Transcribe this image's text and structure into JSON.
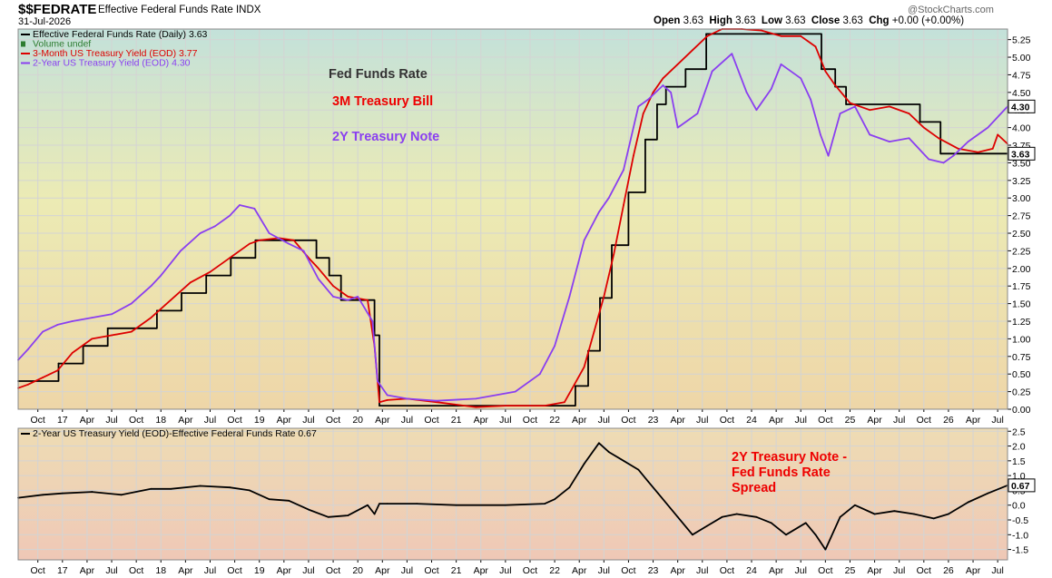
{
  "header": {
    "symbol": "$$FEDRATE",
    "name": "Effective Federal Funds Rate",
    "exchange": "INDX",
    "date": "31-Jul-2026",
    "brand": "@StockCharts.com",
    "open_label": "Open",
    "open": "3.63",
    "high_label": "High",
    "high": "3.63",
    "low_label": "Low",
    "low": "3.63",
    "close_label": "Close",
    "close": "3.63",
    "chg_label": "Chg",
    "chg": "+0.00 (+0.00%)"
  },
  "colors": {
    "fed_funds": "#000000",
    "treasury_3m": "#dd0000",
    "treasury_2y": "#8a3ff0",
    "volume": "#2e7d32",
    "panel_top": "#c3e1da",
    "panel_mid": "#ecebb4",
    "panel_bottom": "#eed6a8",
    "lower_top": "#eedcb4",
    "lower_bottom": "#efc8b6"
  },
  "chart_data": [
    {
      "type": "line",
      "panel": "main",
      "y_axis_side": "right",
      "ylim": [
        0,
        5.4
      ],
      "y_ticks": [
        "0.00",
        "0.25",
        "0.50",
        "0.75",
        "1.00",
        "1.25",
        "1.50",
        "1.75",
        "2.00",
        "2.25",
        "2.50",
        "2.75",
        "3.00",
        "3.25",
        "3.50",
        "3.75",
        "4.00",
        "4.25",
        "4.50",
        "4.75",
        "5.00",
        "5.25"
      ],
      "x_ticks": [
        "Oct",
        "17",
        "Apr",
        "Jul",
        "Oct",
        "18",
        "Apr",
        "Jul",
        "Oct",
        "19",
        "Apr",
        "Jul",
        "Oct",
        "20",
        "Apr",
        "Jul",
        "Oct",
        "21",
        "Apr",
        "Jul",
        "Oct",
        "22",
        "Apr",
        "Jul",
        "Oct",
        "23",
        "Apr",
        "Jul",
        "Oct",
        "24",
        "Apr",
        "Jul",
        "Oct",
        "25",
        "Apr",
        "Jul",
        "Oct",
        "26",
        "Apr",
        "Jul"
      ],
      "x_range": [
        2016.55,
        2026.6
      ],
      "legend": [
        {
          "text": "Effective Federal Funds Rate (Daily) 3.63",
          "color": "#000000"
        },
        {
          "text": "Volume undef",
          "color": "#2e7d32"
        },
        {
          "text": "3-Month US Treasury Yield (EOD) 3.77",
          "color": "#dd0000"
        },
        {
          "text": "2-Year US Treasury Yield (EOD) 4.30",
          "color": "#8a3ff0"
        }
      ],
      "annotations": [
        {
          "text": "Fed Funds Rate",
          "color": "#333333"
        },
        {
          "text": "3M Treasury Bill",
          "color": "#ee0000"
        },
        {
          "text": "2Y Treasury Note",
          "color": "#8a3ff0"
        }
      ],
      "last_value_labels": [
        {
          "text": "4.30",
          "value": 4.3
        },
        {
          "text": "3.63",
          "value": 3.63
        }
      ],
      "series": [
        {
          "name": "Effective Federal Funds Rate (Daily)",
          "step": true,
          "x": [
            2016.55,
            2016.96,
            2017.21,
            2017.46,
            2017.96,
            2018.21,
            2018.46,
            2018.71,
            2018.96,
            2019.58,
            2019.71,
            2019.83,
            2020.17,
            2020.22,
            2022.21,
            2022.34,
            2022.46,
            2022.58,
            2022.75,
            2022.92,
            2023.04,
            2023.13,
            2023.33,
            2023.54,
            2024.71,
            2024.85,
            2024.96,
            2025.71,
            2025.92,
            2026.6
          ],
          "y": [
            0.4,
            0.65,
            0.9,
            1.15,
            1.4,
            1.65,
            1.9,
            2.15,
            2.4,
            2.15,
            1.9,
            1.55,
            1.05,
            0.05,
            0.33,
            0.83,
            1.58,
            2.33,
            3.08,
            3.83,
            4.33,
            4.58,
            4.83,
            5.33,
            4.83,
            4.58,
            4.33,
            4.08,
            3.63,
            3.63
          ]
        },
        {
          "name": "3-Month US Treasury Yield (EOD)",
          "x": [
            2016.55,
            2016.65,
            2016.8,
            2016.95,
            2017.1,
            2017.3,
            2017.5,
            2017.7,
            2017.9,
            2018.1,
            2018.3,
            2018.5,
            2018.7,
            2018.9,
            2019.0,
            2019.2,
            2019.35,
            2019.5,
            2019.6,
            2019.75,
            2019.9,
            2020.1,
            2020.17,
            2020.22,
            2020.3,
            2020.5,
            2020.8,
            2021.2,
            2021.5,
            2021.9,
            2022.1,
            2022.2,
            2022.3,
            2022.4,
            2022.5,
            2022.6,
            2022.7,
            2022.8,
            2022.9,
            2023.0,
            2023.1,
            2023.25,
            2023.4,
            2023.55,
            2023.7,
            2023.9,
            2024.1,
            2024.3,
            2024.5,
            2024.65,
            2024.75,
            2024.85,
            2025.0,
            2025.2,
            2025.4,
            2025.6,
            2025.75,
            2025.9,
            2026.1,
            2026.3,
            2026.45,
            2026.5,
            2026.6
          ],
          "y": [
            0.3,
            0.35,
            0.45,
            0.55,
            0.8,
            1.0,
            1.05,
            1.1,
            1.3,
            1.55,
            1.8,
            1.95,
            2.15,
            2.35,
            2.4,
            2.43,
            2.4,
            2.15,
            2.0,
            1.75,
            1.6,
            1.55,
            0.9,
            0.1,
            0.13,
            0.15,
            0.1,
            0.03,
            0.05,
            0.05,
            0.1,
            0.35,
            0.6,
            1.1,
            1.6,
            2.2,
            2.9,
            3.6,
            4.2,
            4.5,
            4.7,
            4.9,
            5.1,
            5.3,
            5.4,
            5.4,
            5.38,
            5.3,
            5.3,
            5.15,
            4.8,
            4.6,
            4.35,
            4.25,
            4.3,
            4.2,
            4.0,
            3.85,
            3.7,
            3.65,
            3.7,
            3.9,
            3.77
          ]
        },
        {
          "name": "2-Year US Treasury Yield (EOD)",
          "x": [
            2016.55,
            2016.65,
            2016.8,
            2016.95,
            2017.1,
            2017.3,
            2017.5,
            2017.7,
            2017.9,
            2018.0,
            2018.2,
            2018.4,
            2018.55,
            2018.7,
            2018.8,
            2018.95,
            2019.1,
            2019.3,
            2019.45,
            2019.6,
            2019.75,
            2019.9,
            2020.0,
            2020.15,
            2020.2,
            2020.3,
            2020.5,
            2020.8,
            2021.2,
            2021.6,
            2021.85,
            2022.0,
            2022.15,
            2022.3,
            2022.45,
            2022.55,
            2022.7,
            2022.85,
            2022.95,
            2023.1,
            2023.18,
            2023.25,
            2023.45,
            2023.6,
            2023.8,
            2023.95,
            2024.05,
            2024.2,
            2024.3,
            2024.5,
            2024.6,
            2024.7,
            2024.78,
            2024.9,
            2025.05,
            2025.2,
            2025.4,
            2025.6,
            2025.8,
            2025.95,
            2026.05,
            2026.2,
            2026.4,
            2026.6
          ],
          "y": [
            0.7,
            0.85,
            1.1,
            1.2,
            1.25,
            1.3,
            1.35,
            1.5,
            1.75,
            1.9,
            2.25,
            2.5,
            2.6,
            2.75,
            2.9,
            2.85,
            2.5,
            2.35,
            2.25,
            1.85,
            1.6,
            1.55,
            1.6,
            1.25,
            0.4,
            0.2,
            0.15,
            0.12,
            0.15,
            0.25,
            0.5,
            0.9,
            1.6,
            2.4,
            2.8,
            3.0,
            3.4,
            4.3,
            4.4,
            4.6,
            4.5,
            4.0,
            4.2,
            4.8,
            5.05,
            4.5,
            4.25,
            4.55,
            4.9,
            4.7,
            4.4,
            3.9,
            3.6,
            4.2,
            4.3,
            3.9,
            3.8,
            3.85,
            3.55,
            3.5,
            3.6,
            3.8,
            4.0,
            4.3
          ]
        }
      ]
    },
    {
      "type": "line",
      "panel": "lower",
      "ylim": [
        -1.85,
        2.6
      ],
      "y_ticks": [
        "-1.5",
        "-1.0",
        "-0.5",
        "0.0",
        "0.5",
        "1.0",
        "1.5",
        "2.0",
        "2.5"
      ],
      "x_ticks": [
        "Oct",
        "17",
        "Apr",
        "Jul",
        "Oct",
        "18",
        "Apr",
        "Jul",
        "Oct",
        "19",
        "Apr",
        "Jul",
        "Oct",
        "20",
        "Apr",
        "Jul",
        "Oct",
        "21",
        "Apr",
        "Jul",
        "Oct",
        "22",
        "Apr",
        "Jul",
        "Oct",
        "23",
        "Apr",
        "Jul",
        "Oct",
        "24",
        "Apr",
        "Jul",
        "Oct",
        "25",
        "Apr",
        "Jul",
        "Oct",
        "26",
        "Apr",
        "Jul"
      ],
      "x_range": [
        2016.55,
        2026.6
      ],
      "legend": [
        {
          "text": "2-Year US Treasury Yield (EOD)-Effective Federal Funds Rate 0.67",
          "color": "#000000"
        }
      ],
      "annotations": [
        {
          "text": "2Y Treasury Note -",
          "color": "#ee0000"
        },
        {
          "text": "Fed Funds Rate",
          "color": "#ee0000"
        },
        {
          "text": "Spread",
          "color": "#ee0000"
        }
      ],
      "last_value_labels": [
        {
          "text": "0.67",
          "value": 0.67
        }
      ],
      "series": [
        {
          "name": "2-Year US Treasury Yield (EOD)-Effective Federal Funds Rate",
          "x": [
            2016.55,
            2016.8,
            2017.0,
            2017.3,
            2017.6,
            2017.9,
            2018.1,
            2018.4,
            2018.7,
            2018.9,
            2019.1,
            2019.3,
            2019.5,
            2019.7,
            2019.9,
            2020.1,
            2020.17,
            2020.22,
            2020.3,
            2020.6,
            2021.0,
            2021.5,
            2021.9,
            2022.0,
            2022.15,
            2022.3,
            2022.45,
            2022.55,
            2022.7,
            2022.85,
            2022.95,
            2023.05,
            2023.25,
            2023.4,
            2023.55,
            2023.7,
            2023.85,
            2024.05,
            2024.2,
            2024.35,
            2024.55,
            2024.65,
            2024.75,
            2024.9,
            2025.05,
            2025.25,
            2025.45,
            2025.65,
            2025.85,
            2026.0,
            2026.2,
            2026.4,
            2026.6
          ],
          "y": [
            0.25,
            0.35,
            0.4,
            0.45,
            0.35,
            0.55,
            0.55,
            0.65,
            0.6,
            0.5,
            0.2,
            0.15,
            -0.15,
            -0.4,
            -0.35,
            0.0,
            -0.3,
            0.05,
            0.05,
            0.05,
            0.0,
            0.0,
            0.05,
            0.2,
            0.6,
            1.4,
            2.1,
            1.8,
            1.5,
            1.2,
            0.8,
            0.4,
            -0.4,
            -1.0,
            -0.7,
            -0.4,
            -0.3,
            -0.4,
            -0.6,
            -1.0,
            -0.6,
            -1.0,
            -1.5,
            -0.4,
            0.0,
            -0.3,
            -0.2,
            -0.3,
            -0.45,
            -0.3,
            0.1,
            0.4,
            0.67
          ]
        }
      ]
    }
  ]
}
